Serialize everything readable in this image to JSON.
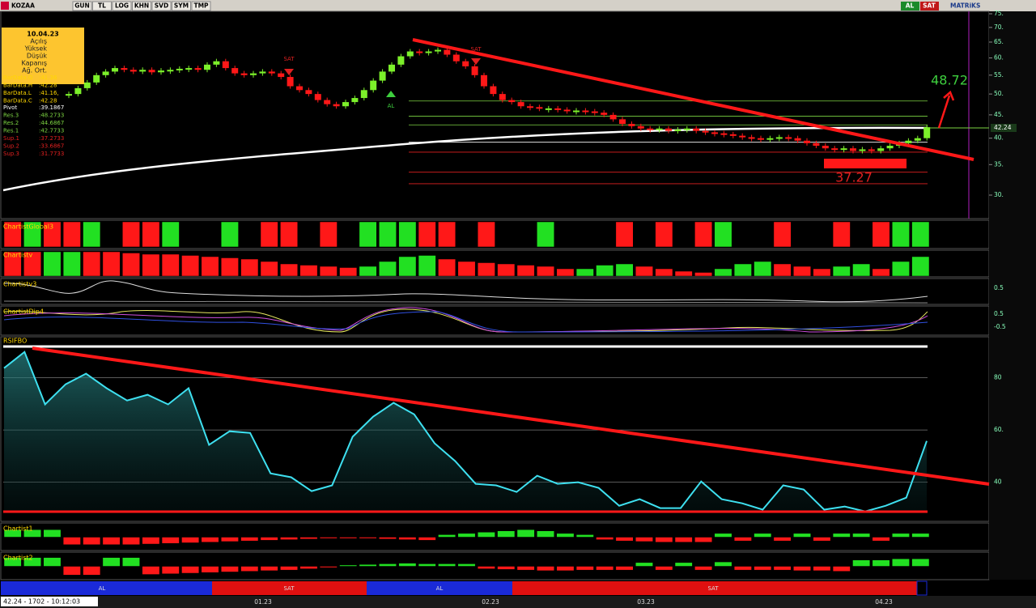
{
  "toolbar": {
    "symbol": "KOZAA",
    "buttons": [
      "GUN",
      "TL",
      "LOG",
      "KHN",
      "SVD",
      "SYM",
      "TMP"
    ],
    "right": [
      "AL",
      "SAT"
    ],
    "brand": "MATRiKS"
  },
  "info_box": {
    "date": "10.04.23",
    "fields": [
      "Açılış",
      "Yüksek",
      "Düşük",
      "Kapanış",
      "Ağ. Ort."
    ],
    "bar_data": [
      {
        "name": "BarData.O",
        "value": ":41.36"
      },
      {
        "name": "BarData.H",
        "value": ":42.28"
      },
      {
        "name": "BarData.L",
        "value": ":41.16,"
      },
      {
        "name": "BarData.C",
        "value": ":42.28"
      }
    ],
    "levels": [
      {
        "name": "Pivot",
        "value": 39.1867,
        "value_label": ":39.1867",
        "color": "#ffffff"
      },
      {
        "name": "Res.3",
        "value": 48.2733,
        "value_label": ":48.2733",
        "color": "#7cd442"
      },
      {
        "name": "Res.2",
        "value": 44.6867,
        "value_label": ":44.6867",
        "color": "#7cd442"
      },
      {
        "name": "Res.1",
        "value": 42.7733,
        "value_label": ":42.7733",
        "color": "#7cd442"
      },
      {
        "name": "Sup.1",
        "value": 37.2733,
        "value_label": ":37.2733",
        "color": "#e02020"
      },
      {
        "name": "Sup.2",
        "value": 33.6867,
        "value_label": ":33.6867",
        "color": "#e02020"
      },
      {
        "name": "Sup.3",
        "value": 31.7733,
        "value_label": ":31.7733",
        "color": "#e02020"
      }
    ]
  },
  "chart_data": {
    "type": "candlestick",
    "log": true,
    "ylim": [
      30,
      75
    ],
    "yticks": [
      {
        "value": 75,
        "label": "75."
      },
      {
        "value": 70,
        "label": "70."
      },
      {
        "value": 65,
        "label": "65."
      },
      {
        "value": 60,
        "label": "60."
      },
      {
        "value": 55,
        "label": "55."
      },
      {
        "value": 50,
        "label": "50."
      },
      {
        "value": 45,
        "label": "45."
      },
      {
        "value": 40,
        "label": "40."
      },
      {
        "value": 35,
        "label": "35."
      },
      {
        "value": 30,
        "label": "30."
      }
    ],
    "close": [
      50,
      51.5,
      53,
      55,
      56,
      57,
      56.5,
      56,
      56.5,
      55.8,
      56.3,
      56.5,
      56.8,
      57,
      56.5,
      58,
      59,
      57,
      55.5,
      55,
      55.5,
      56,
      55.5,
      54.5,
      52,
      51,
      50,
      48.5,
      47.5,
      47,
      48,
      49,
      51,
      53.5,
      56,
      58,
      60.5,
      62,
      61.5,
      62,
      62.5,
      61,
      59,
      57.5,
      55,
      52,
      50,
      48.5,
      48,
      47,
      46.8,
      46.5,
      46.5,
      46.2,
      46,
      46,
      45.8,
      45.5,
      45,
      44,
      43,
      42.5,
      42,
      41.8,
      42,
      41.5,
      41.8,
      42,
      41.5,
      41.2,
      41,
      40.8,
      40.5,
      40.2,
      40,
      39.8,
      40,
      40.2,
      40,
      39.5,
      39,
      38.5,
      38,
      37.8,
      38,
      37.5,
      37.8,
      37.5,
      38,
      38.5,
      39,
      39.5,
      40,
      42.28
    ],
    "last_price": "42.24",
    "target_up": "48.72",
    "target_down": "37.27",
    "annotations": [
      "SAT",
      "SAT",
      "AL"
    ]
  },
  "panels": {
    "global3": {
      "name": "ChartistGlobal3",
      "values": [
        -1,
        1,
        -1,
        -1,
        1,
        0,
        -1,
        -1,
        1,
        0,
        0,
        1,
        0,
        -1,
        -1,
        0,
        -1,
        0,
        1,
        1,
        1,
        -1,
        -1,
        0,
        -1,
        0,
        0,
        1,
        0,
        0,
        0,
        -1,
        0,
        -1,
        0,
        -1,
        1,
        0,
        0,
        -1,
        0,
        0,
        -1,
        0,
        -1,
        1,
        1
      ]
    },
    "v": {
      "name": "Chartistv",
      "values": [
        -1,
        -1,
        1,
        1,
        -1,
        -1,
        -0.95,
        -0.9,
        -0.9,
        -0.85,
        -0.8,
        -0.75,
        -0.7,
        -0.6,
        -0.5,
        -0.45,
        -0.4,
        -0.35,
        0.4,
        0.6,
        0.8,
        0.85,
        -0.7,
        -0.6,
        -0.55,
        -0.5,
        -0.45,
        -0.4,
        -0.3,
        0.3,
        0.45,
        0.5,
        -0.4,
        -0.3,
        -0.2,
        -0.15,
        0.3,
        0.5,
        0.6,
        -0.5,
        -0.4,
        -0.3,
        0.4,
        0.5,
        -0.3,
        0.6,
        0.8
      ]
    },
    "v3": {
      "name": "Chartistv3",
      "yticks": [
        {
          "value": 0.5,
          "label": "0.5"
        }
      ]
    },
    "dip4": {
      "name": "ChartistDip4",
      "yticks": [
        {
          "value": 0.5,
          "label": "0.5"
        },
        {
          "value": -0.5,
          "label": "-0.5"
        }
      ]
    },
    "rsi": {
      "name": "RSIFBO",
      "ylim": [
        25,
        95.7
      ],
      "yticks": [
        80,
        {
          "value": 60,
          "label": "60."
        },
        40
      ],
      "values": [
        83.7,
        89.9,
        69.8,
        77.5,
        81.6,
        76,
        71.3,
        73.5,
        69.8,
        76,
        54.3,
        59.5,
        58.9,
        43.4,
        41.9,
        36.6,
        38.8,
        57.4,
        65.1,
        70.4,
        66,
        54.9,
        48.1,
        39.4,
        38.8,
        36.3,
        42.5,
        39.4,
        40,
        37.8,
        31,
        33.5,
        30.1,
        30.1,
        40.3,
        33.5,
        31.9,
        29.5,
        38.8,
        37.2,
        29.5,
        30.7,
        28.8,
        31,
        34.1,
        55.8
      ]
    },
    "c1": {
      "name": "Chartist1",
      "values": [
        0.6,
        0.6,
        0.6,
        -0.6,
        -0.6,
        -0.6,
        -0.6,
        -0.55,
        -0.5,
        -0.45,
        -0.4,
        -0.35,
        -0.3,
        -0.25,
        -0.2,
        -0.15,
        -0.1,
        -0.1,
        -0.1,
        -0.15,
        -0.2,
        -0.25,
        0.2,
        0.3,
        0.4,
        0.5,
        0.6,
        0.5,
        0.3,
        0.2,
        -0.2,
        -0.3,
        -0.35,
        -0.4,
        -0.4,
        -0.4,
        0.3,
        -0.3,
        0.3,
        -0.3,
        0.3,
        -0.3,
        0.3,
        0.3,
        -0.3,
        0.3,
        0.3
      ]
    },
    "c2": {
      "name": "Chartist2",
      "values": [
        0.7,
        0.7,
        0.7,
        -0.7,
        -0.7,
        0.7,
        0.7,
        -0.65,
        -0.6,
        -0.55,
        -0.5,
        -0.45,
        -0.4,
        -0.35,
        -0.3,
        -0.2,
        -0.1,
        0.1,
        0.15,
        0.2,
        0.25,
        0.2,
        0.2,
        0.2,
        -0.2,
        -0.25,
        -0.3,
        -0.35,
        -0.35,
        -0.3,
        -0.3,
        -0.3,
        0.3,
        -0.3,
        0.3,
        -0.3,
        0.35,
        -0.3,
        -0.3,
        -0.3,
        -0.35,
        -0.35,
        -0.4,
        0.5,
        0.5,
        0.6,
        0.6
      ]
    }
  },
  "signals": [
    "AL",
    "SAT",
    "AL",
    "SAT"
  ],
  "time_axis": [
    "01.23",
    "02.23",
    "03.23",
    "04.23"
  ],
  "status": "42.24 - 1702 - 10:12:03"
}
